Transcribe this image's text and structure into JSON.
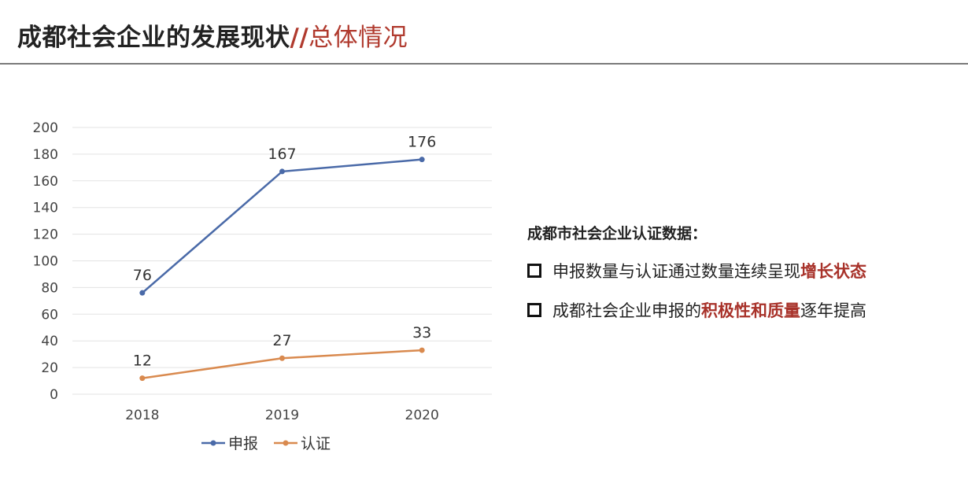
{
  "title": {
    "main": "成都社会企业的发展现状",
    "separator": "//",
    "accent": "总体情况"
  },
  "panel": {
    "heading": "成都市社会企业认证数据：",
    "bullets": [
      {
        "before": "申报数量与认证通过数量连续呈现",
        "highlight": "增长状态",
        "after": ""
      },
      {
        "before": "成都社会企业申报的",
        "highlight": "积极性和质量",
        "after": "逐年提高"
      }
    ]
  },
  "colors": {
    "series1": "#4a6aa8",
    "series2": "#d98a4f",
    "accent": "#b03a2e",
    "grid": "#e3e3e3"
  },
  "chart_data": {
    "type": "line",
    "categories": [
      "2018",
      "2019",
      "2020"
    ],
    "series": [
      {
        "name": "申报",
        "values": [
          76,
          167,
          176
        ]
      },
      {
        "name": "认证",
        "values": [
          12,
          27,
          33
        ]
      }
    ],
    "ylim": [
      0,
      200
    ],
    "yticks": [
      0,
      20,
      40,
      60,
      80,
      100,
      120,
      140,
      160,
      180,
      200
    ],
    "grid": true,
    "legend": "bottom",
    "data_labels": true
  }
}
